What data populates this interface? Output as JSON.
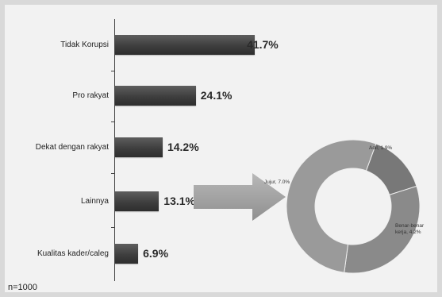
{
  "chart_data": {
    "type": "bar",
    "orientation": "horizontal",
    "categories": [
      "Tidak Korupsi",
      "Pro rakyat",
      "Dekat dengan rakyat",
      "Lainnya",
      "Kualitas kader/caleg"
    ],
    "values": [
      41.7,
      24.1,
      14.2,
      13.1,
      6.9
    ],
    "value_labels": [
      "41.7%",
      "24.1%",
      "14.2%",
      "13.1%",
      "6.9%"
    ],
    "xlim": [
      0,
      45
    ],
    "note": "n=1000",
    "colors": {
      "bar": "#4a4a4a",
      "arrow": "#a6a6a6",
      "background": "#f2f2f2"
    },
    "inset": {
      "type": "pie",
      "style": "donut",
      "slices": [
        {
          "label": "Adil, 1.9%",
          "value": 1.9,
          "color": "#787878"
        },
        {
          "label": "Benar-benar kerja, 4.2%",
          "value": 4.2,
          "color": "#8a8a8a"
        },
        {
          "label": "Jujur, 7.0%",
          "value": 7.0,
          "color": "#9a9a9a"
        }
      ]
    }
  }
}
